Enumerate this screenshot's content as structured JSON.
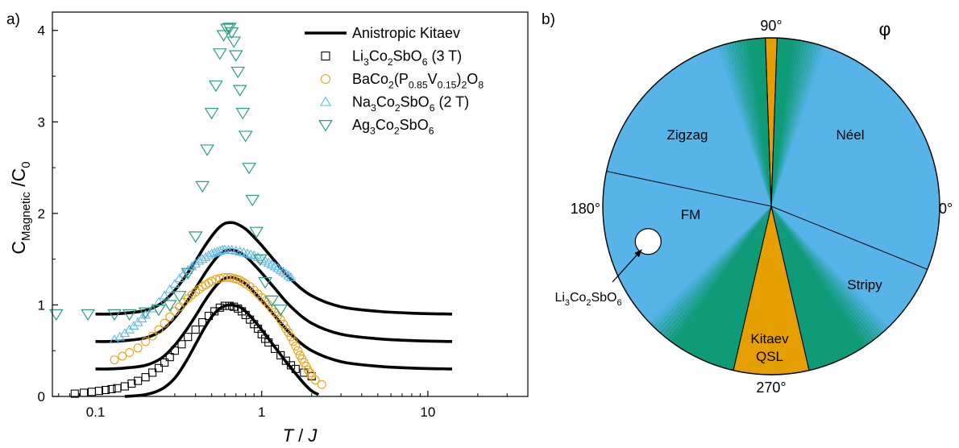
{
  "chart_data": [
    {
      "panel_label": "a)",
      "type": "scatter",
      "xlabel_main": "T",
      "xlabel_sep": " / ",
      "xlabel_var": "J",
      "ylabel_main": "C",
      "ylabel_sub": "Magnetic",
      "ylabel_mid": " /C",
      "ylabel_sub2": "0",
      "x_scale": "log",
      "xlim": [
        0.055,
        40
      ],
      "ylim": [
        0,
        4.2
      ],
      "x_ticks": [
        {
          "value": 0.1,
          "label": "0.1"
        },
        {
          "value": 1,
          "label": "1"
        },
        {
          "value": 10,
          "label": "10"
        }
      ],
      "y_ticks": [
        {
          "value": 0,
          "label": "0"
        },
        {
          "value": 1,
          "label": "1"
        },
        {
          "value": 2,
          "label": "2"
        },
        {
          "value": 3,
          "label": "3"
        },
        {
          "value": 4,
          "label": "4"
        }
      ],
      "legend_position": "top-right",
      "legend": [
        {
          "marker": "line",
          "color": "#000000",
          "parts": [
            [
              "Anistropic Kitaev",
              ""
            ]
          ]
        },
        {
          "marker": "square",
          "color": "#000000",
          "parts": [
            [
              "Li",
              ""
            ],
            [
              "3",
              "sub"
            ],
            [
              "Co",
              ""
            ],
            [
              "2",
              "sub"
            ],
            [
              "SbO",
              ""
            ],
            [
              "6",
              "sub"
            ],
            [
              " (3 T)",
              ""
            ]
          ]
        },
        {
          "marker": "circle",
          "color": "#e8a317",
          "parts": [
            [
              "BaCo",
              ""
            ],
            [
              "2",
              "sub"
            ],
            [
              "(P",
              ""
            ],
            [
              "0.85",
              "sub"
            ],
            [
              "V",
              ""
            ],
            [
              "0.15",
              "sub"
            ],
            [
              ")",
              ""
            ],
            [
              "2",
              "sub"
            ],
            [
              "O",
              ""
            ],
            [
              "8",
              "sub"
            ]
          ]
        },
        {
          "marker": "triangle-up",
          "color": "#5cb8ea",
          "parts": [
            [
              "Na",
              ""
            ],
            [
              "3",
              "sub"
            ],
            [
              "Co",
              ""
            ],
            [
              "2",
              "sub"
            ],
            [
              "SbO",
              ""
            ],
            [
              "6",
              "sub"
            ],
            [
              " (2 T)",
              ""
            ]
          ]
        },
        {
          "marker": "triangle-down",
          "color": "#2e9b82",
          "parts": [
            [
              "Ag",
              ""
            ],
            [
              "3",
              "sub"
            ],
            [
              "Co",
              ""
            ],
            [
              "2",
              "sub"
            ],
            [
              "SbO",
              ""
            ],
            [
              "6",
              "sub"
            ]
          ]
        }
      ],
      "kitaev_curves": [
        {
          "offset": 0.0,
          "x": [
            0.15,
            0.2,
            0.25,
            0.3,
            0.35,
            0.4,
            0.45,
            0.5,
            0.55,
            0.6,
            0.65,
            0.7,
            0.75,
            0.8,
            0.9,
            1.0,
            1.2,
            1.4,
            1.6,
            1.8,
            2.0,
            2.2
          ],
          "y": [
            0.0,
            0.02,
            0.08,
            0.2,
            0.38,
            0.57,
            0.74,
            0.87,
            0.95,
            0.99,
            1.0,
            0.99,
            0.97,
            0.93,
            0.83,
            0.73,
            0.54,
            0.38,
            0.25,
            0.14,
            0.06,
            0.02
          ]
        },
        {
          "offset": 0.3,
          "x": [
            0.1,
            0.12,
            0.15,
            0.2,
            0.25,
            0.3,
            0.35,
            0.4,
            0.45,
            0.5,
            0.55,
            0.6,
            0.65,
            0.7,
            0.8,
            0.9,
            1.0,
            1.2,
            1.5,
            2.0,
            3.0,
            5.0,
            8.0,
            14.0
          ],
          "y": [
            0.0,
            0.0,
            0.01,
            0.04,
            0.12,
            0.26,
            0.42,
            0.58,
            0.73,
            0.85,
            0.94,
            0.99,
            1.0,
            0.99,
            0.93,
            0.84,
            0.75,
            0.58,
            0.38,
            0.2,
            0.08,
            0.03,
            0.01,
            0.0
          ]
        },
        {
          "offset": 0.6,
          "x": [
            0.1,
            0.12,
            0.15,
            0.2,
            0.25,
            0.3,
            0.35,
            0.4,
            0.45,
            0.5,
            0.55,
            0.6,
            0.65,
            0.7,
            0.8,
            0.9,
            1.0,
            1.2,
            1.5,
            2.0,
            3.0,
            5.0,
            8.0,
            14.0
          ],
          "y": [
            0.0,
            0.0,
            0.01,
            0.04,
            0.12,
            0.26,
            0.42,
            0.58,
            0.73,
            0.85,
            0.94,
            0.99,
            1.0,
            0.99,
            0.93,
            0.84,
            0.75,
            0.58,
            0.38,
            0.2,
            0.08,
            0.03,
            0.01,
            0.0
          ]
        },
        {
          "offset": 0.9,
          "x": [
            0.1,
            0.12,
            0.15,
            0.2,
            0.25,
            0.3,
            0.35,
            0.4,
            0.45,
            0.5,
            0.55,
            0.6,
            0.65,
            0.7,
            0.8,
            0.9,
            1.0,
            1.2,
            1.5,
            2.0,
            3.0,
            5.0,
            8.0,
            14.0
          ],
          "y": [
            0.0,
            0.0,
            0.01,
            0.04,
            0.12,
            0.26,
            0.42,
            0.58,
            0.73,
            0.85,
            0.94,
            0.99,
            1.0,
            0.99,
            0.93,
            0.84,
            0.75,
            0.58,
            0.38,
            0.2,
            0.08,
            0.03,
            0.01,
            0.0
          ]
        }
      ],
      "series": [
        {
          "name": "Li3Co2SbO6 (3 T)",
          "marker": "square",
          "color": "#000000",
          "x": [
            0.075,
            0.085,
            0.095,
            0.105,
            0.115,
            0.125,
            0.135,
            0.15,
            0.165,
            0.18,
            0.2,
            0.22,
            0.24,
            0.26,
            0.28,
            0.3,
            0.33,
            0.36,
            0.4,
            0.44,
            0.48,
            0.52,
            0.56,
            0.6,
            0.64,
            0.68,
            0.72,
            0.76,
            0.8,
            0.85,
            0.9,
            0.95,
            1.0,
            1.05,
            1.1,
            1.2,
            1.3,
            1.4,
            1.5,
            1.6,
            1.8,
            2.0
          ],
          "y": [
            0.03,
            0.04,
            0.05,
            0.06,
            0.07,
            0.08,
            0.09,
            0.11,
            0.14,
            0.17,
            0.21,
            0.26,
            0.31,
            0.37,
            0.43,
            0.5,
            0.57,
            0.65,
            0.73,
            0.81,
            0.88,
            0.93,
            0.97,
            0.99,
            0.99,
            0.98,
            0.96,
            0.93,
            0.89,
            0.84,
            0.79,
            0.74,
            0.68,
            0.63,
            0.59,
            0.52,
            0.45,
            0.39,
            0.34,
            0.3,
            0.26,
            0.22
          ]
        },
        {
          "name": "BaCo2(P0.85V0.15)2O8",
          "marker": "circle",
          "color": "#e8a317",
          "x": [
            0.13,
            0.145,
            0.16,
            0.18,
            0.2,
            0.22,
            0.24,
            0.26,
            0.28,
            0.3,
            0.32,
            0.34,
            0.36,
            0.38,
            0.4,
            0.42,
            0.44,
            0.46,
            0.48,
            0.5,
            0.53,
            0.56,
            0.59,
            0.62,
            0.65,
            0.68,
            0.71,
            0.74,
            0.77,
            0.8,
            0.85,
            0.9,
            0.95,
            1.0,
            1.05,
            1.1,
            1.15,
            1.2,
            1.25,
            1.3,
            1.35,
            1.4,
            1.45,
            1.5,
            1.55,
            1.6,
            1.65,
            1.7,
            1.75,
            1.8,
            1.85,
            1.9,
            1.95,
            2.0,
            2.1,
            2.3
          ],
          "y": [
            0.4,
            0.44,
            0.48,
            0.53,
            0.6,
            0.66,
            0.73,
            0.8,
            0.87,
            0.93,
            0.98,
            1.03,
            1.07,
            1.11,
            1.14,
            1.17,
            1.2,
            1.22,
            1.24,
            1.26,
            1.28,
            1.29,
            1.3,
            1.3,
            1.3,
            1.29,
            1.28,
            1.27,
            1.25,
            1.23,
            1.2,
            1.16,
            1.12,
            1.08,
            1.04,
            1.0,
            0.96,
            0.92,
            0.88,
            0.84,
            0.79,
            0.74,
            0.7,
            0.65,
            0.6,
            0.55,
            0.5,
            0.45,
            0.41,
            0.37,
            0.33,
            0.29,
            0.26,
            0.23,
            0.18,
            0.13
          ]
        },
        {
          "name": "Na3Co2SbO6 (2 T)",
          "marker": "triangle-up",
          "color": "#5cb8ea",
          "x": [
            0.13,
            0.14,
            0.15,
            0.16,
            0.17,
            0.18,
            0.19,
            0.2,
            0.22,
            0.24,
            0.26,
            0.28,
            0.3,
            0.32,
            0.34,
            0.36,
            0.38,
            0.4,
            0.42,
            0.44,
            0.46,
            0.48,
            0.5,
            0.52,
            0.54,
            0.56,
            0.58,
            0.6,
            0.63,
            0.66,
            0.7,
            0.74,
            0.78,
            0.82,
            0.86,
            0.9,
            0.95,
            1.0,
            1.05,
            1.1,
            1.15,
            1.2,
            1.25,
            1.3,
            1.35,
            1.4,
            1.45,
            1.5
          ],
          "y": [
            0.62,
            0.65,
            0.69,
            0.73,
            0.77,
            0.81,
            0.85,
            0.89,
            0.96,
            1.03,
            1.1,
            1.17,
            1.23,
            1.29,
            1.34,
            1.38,
            1.42,
            1.45,
            1.48,
            1.5,
            1.52,
            1.54,
            1.56,
            1.57,
            1.58,
            1.59,
            1.6,
            1.6,
            1.6,
            1.6,
            1.59,
            1.58,
            1.57,
            1.56,
            1.55,
            1.54,
            1.52,
            1.5,
            1.48,
            1.46,
            1.44,
            1.42,
            1.4,
            1.38,
            1.36,
            1.34,
            1.32,
            1.3
          ]
        },
        {
          "name": "Ag3Co2SbO6",
          "marker": "triangle-down",
          "color": "#2e9b82",
          "x": [
            0.058,
            0.09,
            0.13,
            0.16,
            0.2,
            0.24,
            0.28,
            0.32,
            0.36,
            0.4,
            0.44,
            0.47,
            0.5,
            0.53,
            0.56,
            0.59,
            0.62,
            0.64,
            0.66,
            0.68,
            0.7,
            0.72,
            0.74,
            0.77,
            0.8,
            0.84,
            0.88,
            0.93,
            0.98,
            1.05,
            1.15,
            1.3
          ],
          "y": [
            0.9,
            0.9,
            0.9,
            0.9,
            0.92,
            0.95,
            1.0,
            1.1,
            1.35,
            1.75,
            2.3,
            2.7,
            3.1,
            3.4,
            3.75,
            3.95,
            4.02,
            4.03,
            3.98,
            3.88,
            3.73,
            3.55,
            3.35,
            3.1,
            2.85,
            2.5,
            2.15,
            1.8,
            1.5,
            1.25,
            1.05,
            0.95
          ]
        }
      ]
    },
    {
      "panel_label": "b)",
      "type": "pie",
      "title": "φ",
      "direction_labels": {
        "deg0": "0°",
        "deg90": "90°",
        "deg180": "180°",
        "deg270": "270°"
      },
      "colors": {
        "blue": "#56b4e9",
        "green": "#0d9a73",
        "orange": "#e69f00"
      },
      "phases": [
        {
          "label": "Néel",
          "lines": [
            "Néel"
          ],
          "start_deg": -22,
          "end_deg": 83,
          "color": "#56b4e9"
        },
        {
          "label": "Zigzag",
          "lines": [
            "Zigzag"
          ],
          "start_deg": 97,
          "end_deg": 168,
          "color": "#56b4e9"
        },
        {
          "label": "FM",
          "lines": [
            "FM"
          ],
          "start_deg": 168,
          "end_deg": 235,
          "color": "#56b4e9"
        },
        {
          "label": "Kitaev QSL",
          "lines": [
            "Kitaev",
            "QSL"
          ],
          "start_deg": 257,
          "end_deg": 283,
          "color": "#e69f00"
        },
        {
          "label": "Stripy",
          "lines": [
            "Stripy"
          ],
          "start_deg": 303,
          "end_deg": 338,
          "color": "#56b4e9"
        }
      ],
      "orange_wedges": [
        {
          "start_deg": 88,
          "end_deg": 92
        },
        {
          "start_deg": 257,
          "end_deg": 283
        }
      ],
      "boundaries_deg": [
        -22,
        88,
        92,
        168,
        257,
        283
      ],
      "green_regions": [
        {
          "start_deg": 83,
          "end_deg": 97
        },
        {
          "start_deg": 235,
          "end_deg": 257
        },
        {
          "start_deg": 283,
          "end_deg": 303
        }
      ],
      "marker": {
        "label_main": "Li",
        "label_parts": [
          [
            "Li",
            ""
          ],
          [
            "3",
            "sub"
          ],
          [
            "Co",
            ""
          ],
          [
            "2",
            "sub"
          ],
          [
            "SbO",
            ""
          ],
          [
            "6",
            "sub"
          ]
        ],
        "angle_deg": 196,
        "radius_frac": 0.76
      }
    }
  ]
}
